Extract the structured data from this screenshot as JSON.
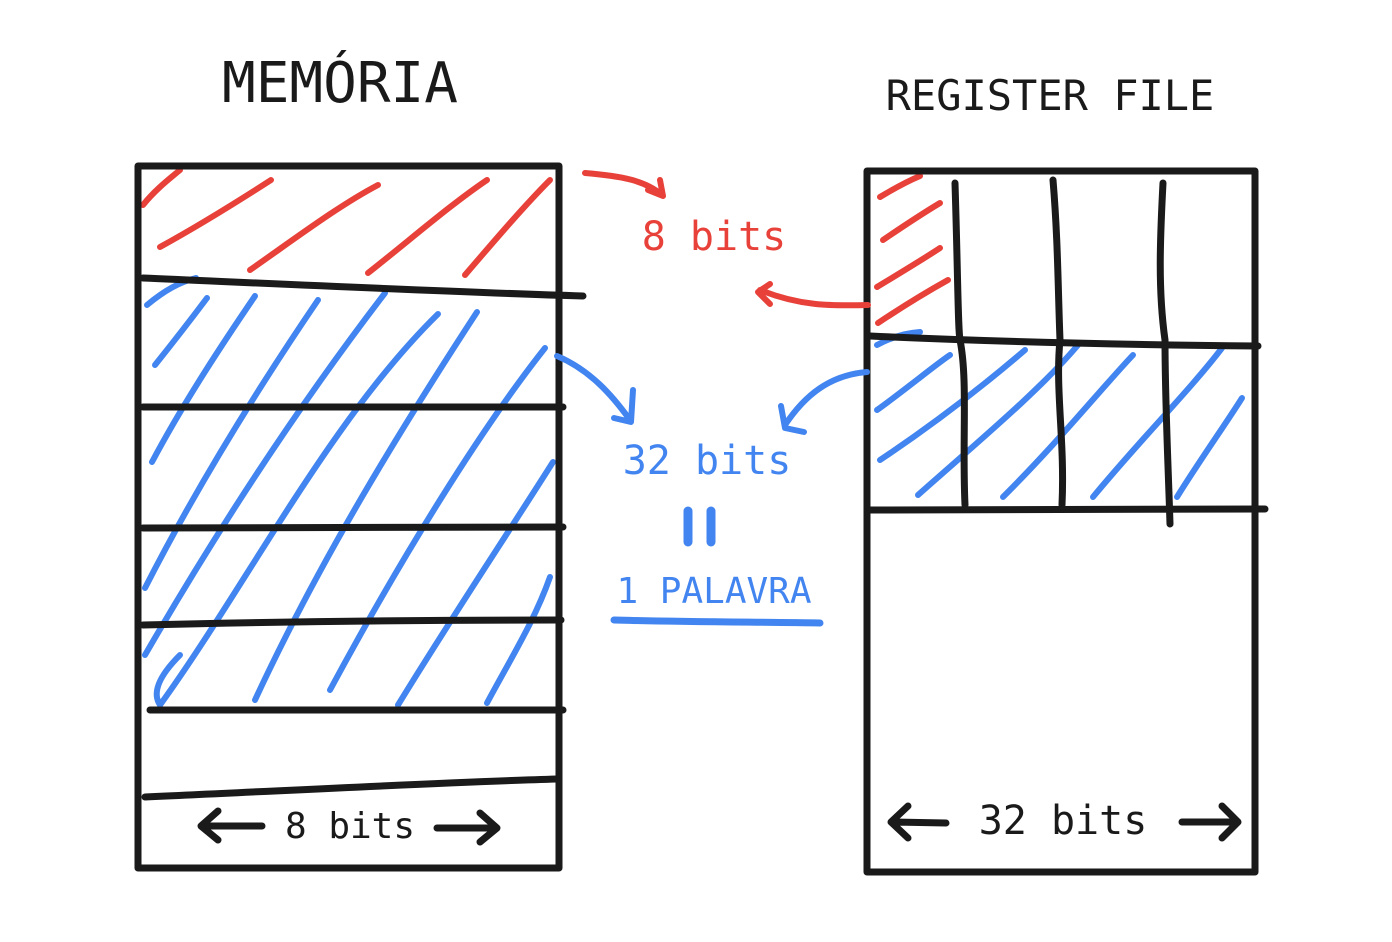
{
  "memory": {
    "title": "MEMÓRIA",
    "width_label": "8 bits"
  },
  "register_file": {
    "title": "REGISTER FILE",
    "width_label": "32 bits"
  },
  "annotations": {
    "byte_label": "8 bits",
    "word_bits_label": "32 bits",
    "equals_sign": "=",
    "word_label": "1 PALAVRA"
  },
  "colors": {
    "ink": "#1a1a1a",
    "byte_highlight": "#e8413a",
    "word_highlight": "#4285f0"
  }
}
